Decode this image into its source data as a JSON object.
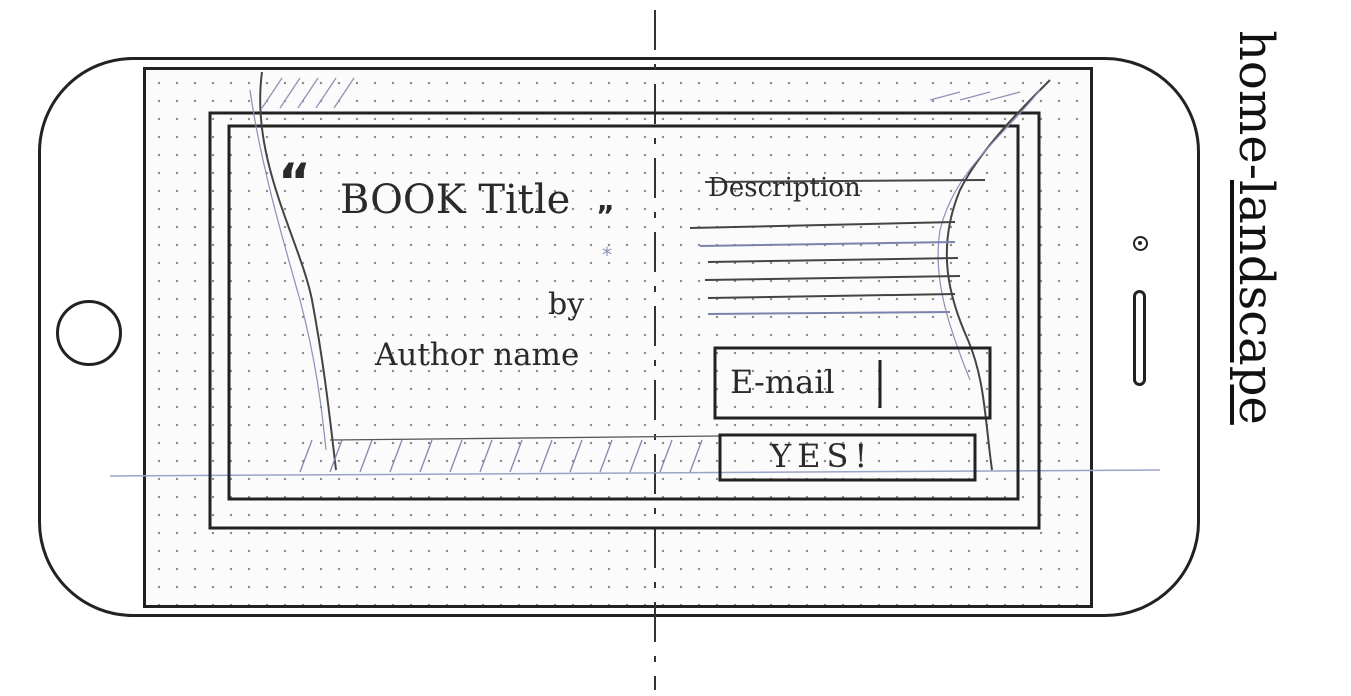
{
  "screen_label": {
    "prefix": "home-",
    "underlined": "landscape"
  },
  "hero": {
    "quote_open": "“",
    "title": "BOOK Title",
    "quote_close": "”",
    "by": "by",
    "author": "Author name"
  },
  "info": {
    "description": "Description",
    "email_placeholder": "E-mail",
    "cta_label": "YES!"
  }
}
